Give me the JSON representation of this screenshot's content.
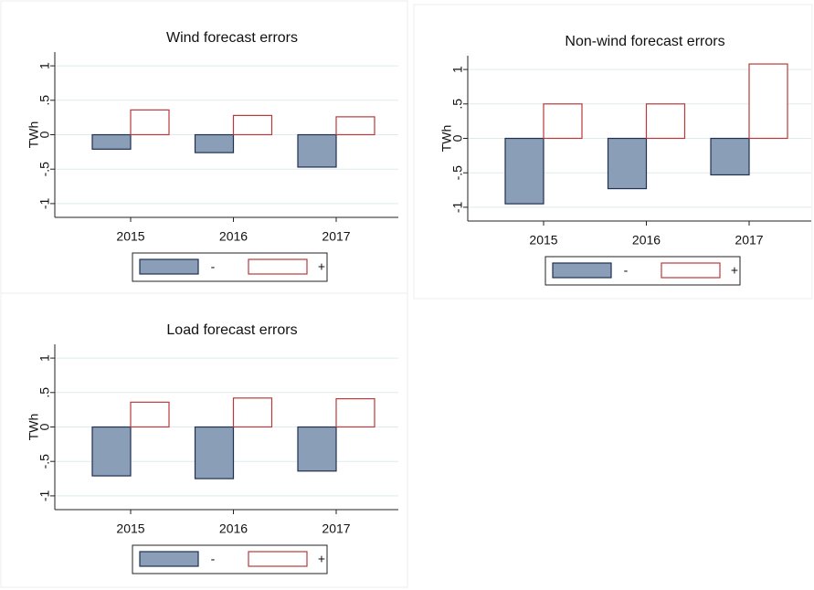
{
  "chart_data": [
    {
      "type": "bar",
      "title": "Wind forecast errors",
      "y_label": "TWh",
      "categories": [
        "2015",
        "2016",
        "2017"
      ],
      "series": [
        {
          "name": "-",
          "color": "#8a9eb7",
          "values": [
            -0.21,
            -0.26,
            -0.47
          ]
        },
        {
          "name": "+",
          "color": "#ffffff",
          "values": [
            0.36,
            0.28,
            0.26
          ]
        }
      ],
      "ylim": [
        -1.2,
        1.2
      ],
      "yticks": [
        -1,
        {
          "value": -0.5,
          "label": "-.5"
        },
        0,
        {
          "value": 0.5,
          "label": ".5"
        },
        1
      ],
      "grid": true
    },
    {
      "type": "bar",
      "title": "Non-wind forecast errors",
      "y_label": "TWh",
      "categories": [
        "2015",
        "2016",
        "2017"
      ],
      "series": [
        {
          "name": "-",
          "color": "#8a9eb7",
          "values": [
            -0.95,
            -0.73,
            -0.53
          ]
        },
        {
          "name": "+",
          "color": "#ffffff",
          "values": [
            0.5,
            0.5,
            1.08
          ]
        }
      ],
      "ylim": [
        -1.2,
        1.2
      ],
      "yticks": [
        -1,
        {
          "value": -0.5,
          "label": "-.5"
        },
        0,
        {
          "value": 0.5,
          "label": ".5"
        },
        1
      ],
      "grid": true
    },
    {
      "type": "bar",
      "title": "Load forecast errors",
      "y_label": "TWh",
      "categories": [
        "2015",
        "2016",
        "2017"
      ],
      "series": [
        {
          "name": "-",
          "color": "#8a9eb7",
          "values": [
            -0.71,
            -0.75,
            -0.64
          ]
        },
        {
          "name": "+",
          "color": "#ffffff",
          "values": [
            0.36,
            0.42,
            0.41
          ]
        }
      ],
      "ylim": [
        -1.2,
        1.2
      ],
      "yticks": [
        -1,
        {
          "value": -0.5,
          "label": "-.5"
        },
        0,
        {
          "value": 0.5,
          "label": ".5"
        },
        1
      ],
      "grid": true
    }
  ]
}
